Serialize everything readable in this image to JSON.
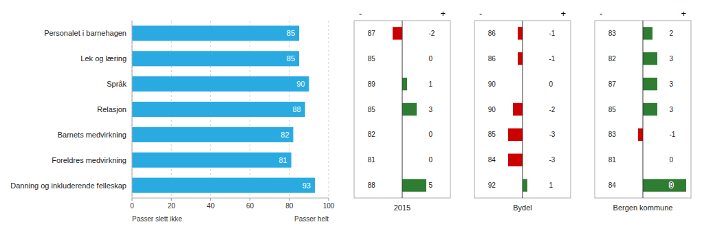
{
  "chart_data": [
    {
      "type": "bar",
      "orientation": "horizontal",
      "categories": [
        "Personalet i barnehagen",
        "Lek og læring",
        "Språk",
        "Relasjon",
        "Barnets medvirkning",
        "Foreldres medvirkning",
        "Danning og inkluderende felleskap"
      ],
      "values": [
        85,
        85,
        90,
        88,
        82,
        81,
        93
      ],
      "color": "#29ABE2",
      "xlim": [
        0,
        100
      ],
      "xticks": [
        0,
        20,
        40,
        60,
        80,
        100
      ],
      "grid": true,
      "data_labels": true,
      "annotations": [
        "Passer slett ikke",
        "Passer helt"
      ]
    },
    {
      "type": "bar",
      "orientation": "horizontal",
      "title": "2015",
      "scores": [
        87,
        85,
        89,
        85,
        82,
        81,
        88
      ],
      "values": [
        -2,
        0,
        1,
        3,
        0,
        0,
        5
      ],
      "colors": [
        "#CC0000",
        "#888888",
        "#2E7D32",
        "#2E7D32",
        "#888888",
        "#888888",
        "#2E7D32"
      ],
      "xlim": [
        -10,
        10
      ],
      "xticks": [
        0
      ],
      "tick_labels": false,
      "grid": true,
      "data_labels": true,
      "annotations": [
        "-",
        "+"
      ]
    },
    {
      "type": "bar",
      "orientation": "horizontal",
      "title": "Bydel",
      "scores": [
        86,
        86,
        90,
        90,
        85,
        84,
        92
      ],
      "values": [
        -1,
        -1,
        0,
        -2,
        -3,
        -3,
        1
      ],
      "colors": [
        "#CC0000",
        "#CC0000",
        "#888888",
        "#CC0000",
        "#CC0000",
        "#CC0000",
        "#2E7D32"
      ],
      "xlim": [
        -10,
        10
      ],
      "xticks": [
        0
      ],
      "tick_labels": false,
      "grid": true,
      "data_labels": true,
      "annotations": [
        "-",
        "+"
      ]
    },
    {
      "type": "bar",
      "orientation": "horizontal",
      "title": "Bergen kommune",
      "scores": [
        83,
        82,
        87,
        85,
        83,
        81,
        84
      ],
      "values": [
        2,
        3,
        3,
        3,
        -1,
        0,
        9
      ],
      "colors": [
        "#2E7D32",
        "#2E7D32",
        "#2E7D32",
        "#2E7D32",
        "#CC0000",
        "#888888",
        "#2E7D32"
      ],
      "xlim": [
        -10,
        10
      ],
      "xticks": [
        0
      ],
      "tick_labels": false,
      "grid": true,
      "data_labels": true,
      "annotations": [
        "-",
        "+"
      ]
    }
  ]
}
